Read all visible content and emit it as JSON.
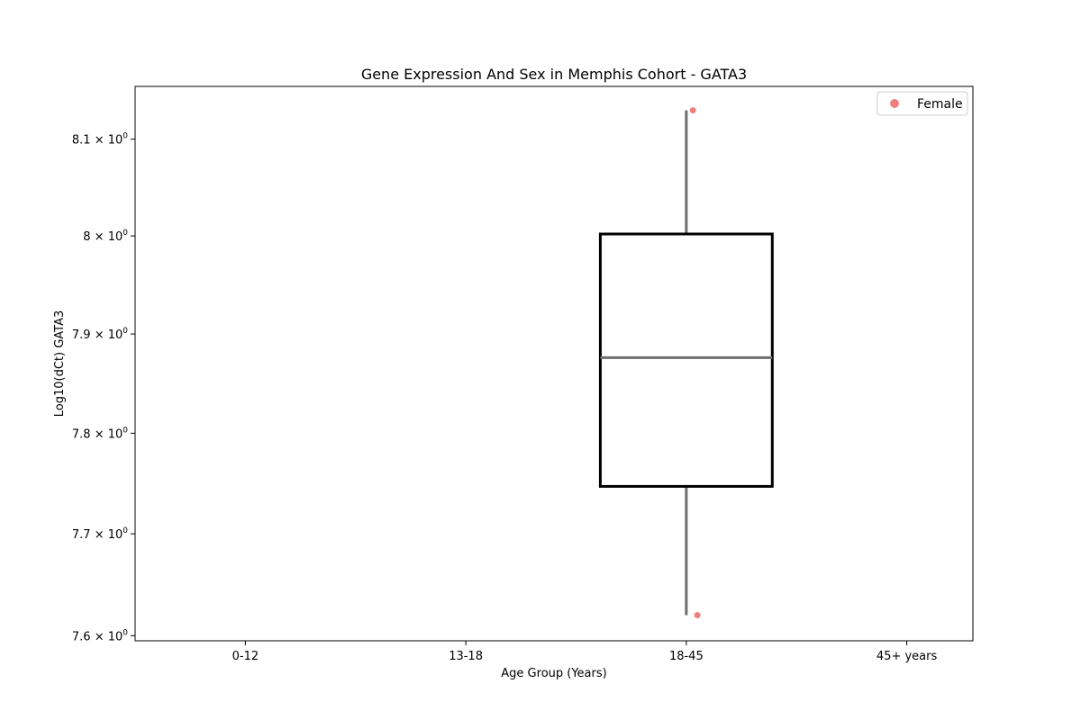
{
  "chart_data": {
    "type": "box",
    "title": "Gene Expression And Sex in Memphis Cohort - GATA3",
    "xlabel": "Age Group (Years)",
    "ylabel": "Log10(dCt) GATA3",
    "categories": [
      "0-12",
      "13-18",
      "18-45",
      "45+ years"
    ],
    "yscale": "log",
    "ylim": [
      7.595,
      8.155
    ],
    "yticks": [
      {
        "value": 7.6,
        "mantissa": "7.6"
      },
      {
        "value": 7.7,
        "mantissa": "7.7"
      },
      {
        "value": 7.8,
        "mantissa": "7.8"
      },
      {
        "value": 7.9,
        "mantissa": "7.9"
      },
      {
        "value": 8.0,
        "mantissa": "8"
      },
      {
        "value": 8.1,
        "mantissa": "8.1"
      }
    ],
    "box": {
      "category": "18-45",
      "whisker_low": 7.62,
      "q1": 7.747,
      "median": 7.876,
      "q3": 8.002,
      "whisker_high": 8.13
    },
    "series": [
      {
        "name": "Female",
        "color": "#f08080",
        "points": [
          {
            "category": "18-45",
            "offset": 0.03,
            "y": 8.13
          },
          {
            "category": "18-45",
            "offset": 0.05,
            "y": 7.62
          }
        ]
      }
    ],
    "legend": {
      "placement": "top-right"
    },
    "grid": false,
    "colors": {
      "box_edge": "#000000",
      "whisker": "#6e6e6e",
      "median": "#6e6e6e"
    }
  }
}
